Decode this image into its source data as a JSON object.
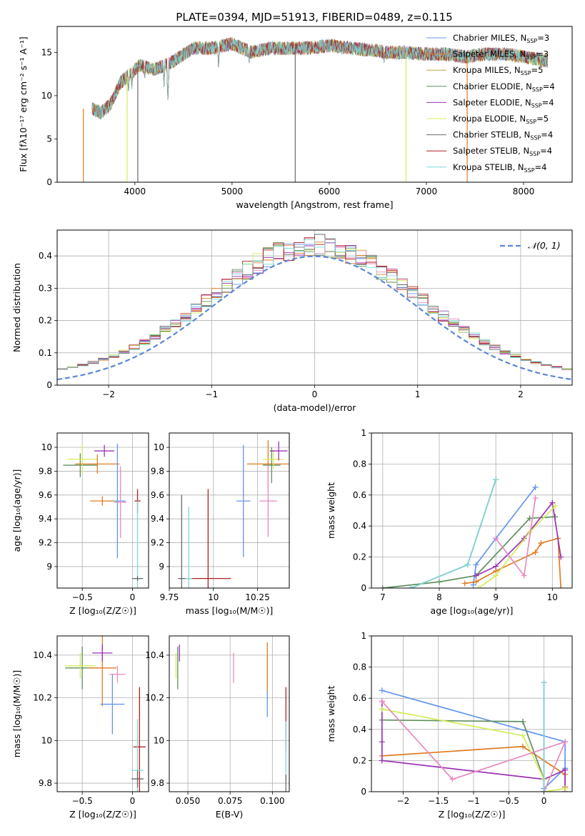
{
  "figure_title": "PLATE=0394, MJD=51913, FIBERID=0489, z=0.115",
  "colors": {
    "cornflower": "#6495ed",
    "dark_orange": "#e07b22",
    "sea_green": "#5f8f5f",
    "dark_orchid": "#9b32b4",
    "yellow_green": "#d4ec5a",
    "hot_pink": "#e88ac0",
    "dim_gray": "#696969",
    "firebrick": "#b22222",
    "light_cyan": "#7fd8d8"
  },
  "chart_data": [
    {
      "id": "spectrum",
      "type": "line",
      "xlabel": "wavelength [Angstrom, rest frame]",
      "ylabel": "Flux [fλ10⁻¹⁷ erg cm⁻² s⁻¹ A⁻¹]",
      "xlim": [
        3200,
        8500
      ],
      "ylim": [
        0,
        18
      ],
      "xticks": [
        4000,
        5000,
        6000,
        7000,
        8000
      ],
      "yticks": [
        0,
        5,
        10,
        15
      ],
      "grid": false,
      "legend_position": "top-right",
      "series": [
        {
          "name": "Chabrier MILES, N_SSP=3",
          "color": "#6495ed"
        },
        {
          "name": "Salpeter MILES, N_SSP=3",
          "color": "#e07b22"
        },
        {
          "name": "Kroupa MILES, N_SSP=5",
          "color": "#c8a050"
        },
        {
          "name": "Chabrier ELODIE, N_SSP=4",
          "color": "#5f8f5f"
        },
        {
          "name": "Salpeter ELODIE, N_SSP=4",
          "color": "#9b32b4"
        },
        {
          "name": "Kroupa ELODIE, N_SSP=5",
          "color": "#d4ec5a"
        },
        {
          "name": "Chabrier STELIB, N_SSP=4",
          "color": "#696969"
        },
        {
          "name": "Salpeter STELIB, N_SSP=4",
          "color": "#b22222"
        },
        {
          "name": "Kroupa STELIB, N_SSP=4",
          "color": "#7fd8d8"
        }
      ],
      "legend_entries": [
        {
          "prefix": "Chabrier MILES, N",
          "sub": "SSP",
          "suffix": "=3"
        },
        {
          "prefix": "Salpeter MILES, N",
          "sub": "SSP",
          "suffix": "=3"
        },
        {
          "prefix": "Kroupa MILES, N",
          "sub": "SSP",
          "suffix": "=5"
        },
        {
          "prefix": "Chabrier ELODIE, N",
          "sub": "SSP",
          "suffix": "=4"
        },
        {
          "prefix": "Salpeter ELODIE, N",
          "sub": "SSP",
          "suffix": "=4"
        },
        {
          "prefix": "Kroupa ELODIE, N",
          "sub": "SSP",
          "suffix": "=5"
        },
        {
          "prefix": "Chabrier STELIB, N",
          "sub": "SSP",
          "suffix": "=4"
        },
        {
          "prefix": "Salpeter STELIB, N",
          "sub": "SSP",
          "suffix": "=4"
        },
        {
          "prefix": "Kroupa STELIB, N",
          "sub": "SSP",
          "suffix": "=4"
        }
      ],
      "continuum": [
        [
          3560,
          8.5
        ],
        [
          3650,
          8.0
        ],
        [
          3750,
          9.0
        ],
        [
          3850,
          11.5
        ],
        [
          3950,
          12.5
        ],
        [
          4050,
          13.5
        ],
        [
          4200,
          13.0
        ],
        [
          4400,
          14.0
        ],
        [
          4600,
          15.5
        ],
        [
          4800,
          15.5
        ],
        [
          5000,
          16.0
        ],
        [
          5200,
          15.0
        ],
        [
          5400,
          15.5
        ],
        [
          5600,
          15.5
        ],
        [
          5800,
          15.5
        ],
        [
          6000,
          15.8
        ],
        [
          6200,
          15.5
        ],
        [
          6400,
          15.3
        ],
        [
          6600,
          15.0
        ],
        [
          6800,
          15.0
        ],
        [
          7000,
          14.8
        ],
        [
          7200,
          14.8
        ],
        [
          7400,
          14.5
        ],
        [
          7600,
          14.8
        ],
        [
          7800,
          14.8
        ],
        [
          8000,
          14.5
        ],
        [
          8250,
          14.0
        ]
      ],
      "absorption_lines": [
        [
          3934,
          10.0
        ],
        [
          3969,
          10.5
        ],
        [
          4102,
          11.5
        ],
        [
          4300,
          11.0
        ],
        [
          4340,
          9.5
        ],
        [
          4861,
          13.0
        ],
        [
          5175,
          13.5
        ],
        [
          5270,
          14.0
        ],
        [
          5890,
          14.5
        ],
        [
          6563,
          13.5
        ]
      ],
      "dropouts": [
        {
          "x": 3470,
          "color": "#e07b22"
        },
        {
          "x": 3920,
          "color": "#d4ec5a"
        },
        {
          "x": 4030,
          "color": "#696969"
        },
        {
          "x": 5650,
          "color": "#696969"
        },
        {
          "x": 6790,
          "color": "#d4ec5a"
        },
        {
          "x": 7420,
          "color": "#e07b22"
        }
      ]
    },
    {
      "id": "residuals",
      "type": "histogram",
      "xlabel": "(data-model)/error",
      "ylabel": "Normed distribution",
      "xlim": [
        -2.5,
        2.5
      ],
      "ylim": [
        0,
        0.48
      ],
      "xticks": [
        -2,
        -1,
        0,
        1,
        2
      ],
      "yticks": [
        0.0,
        0.1,
        0.2,
        0.3,
        0.4
      ],
      "grid": true,
      "legend_position": "top-right",
      "legend_label": "𝒩(0, 1)",
      "reference_curve": "standard normal density",
      "bin_width": 0.1
    },
    {
      "id": "age_vs_Z",
      "type": "scatter",
      "xlabel": "Z [log₁₀(Z/Z☉)]",
      "ylabel": "age  [log₁₀(age/yr)]",
      "xlim": [
        -0.75,
        0.16
      ],
      "ylim": [
        8.82,
        10.12
      ],
      "xticks": [
        -0.5,
        0.0
      ],
      "yticks": [
        9.0,
        9.2,
        9.4,
        9.6,
        9.8,
        10.0
      ],
      "grid": true,
      "points": [
        {
          "x": -0.52,
          "y": 9.85,
          "xerr": 0.17,
          "yerr": 0.1,
          "color": "#5f8f5f"
        },
        {
          "x": -0.5,
          "y": 9.9,
          "xerr": 0.15,
          "yerr": 0.12,
          "color": "#d4ec5a"
        },
        {
          "x": -0.35,
          "y": 9.86,
          "xerr": 0.22,
          "yerr": 0.08,
          "color": "#e07b22"
        },
        {
          "x": -0.28,
          "y": 9.97,
          "xerr": 0.1,
          "yerr": 0.05,
          "color": "#9b32b4"
        },
        {
          "x": -0.15,
          "y": 9.55,
          "xerr": 0.08,
          "yerr": 0.48,
          "color": "#6495ed"
        },
        {
          "x": -0.12,
          "y": 9.54,
          "xerr": 0.06,
          "yerr": 0.3,
          "color": "#e88ac0"
        },
        {
          "x": -0.3,
          "y": 9.55,
          "xerr": 0.12,
          "yerr": 0.04,
          "color": "#e07b22"
        },
        {
          "x": 0.05,
          "y": 9.55,
          "xerr": 0.03,
          "yerr": 0.1,
          "color": "#b22222"
        },
        {
          "x": 0.05,
          "y": 8.9,
          "xerr": 0.06,
          "yerr": 0.65,
          "color": "#7fd8d8"
        },
        {
          "x": 0.05,
          "y": 8.9,
          "xerr": 0.05,
          "yerr": 0.02,
          "color": "#696969"
        }
      ]
    },
    {
      "id": "age_vs_mass",
      "type": "scatter",
      "xlabel": "mass [log₁₀(M/M☉)]",
      "ylabel": "",
      "xlim": [
        9.75,
        10.43
      ],
      "ylim": [
        8.82,
        10.12
      ],
      "xticks": [
        9.75,
        10.0,
        10.25
      ],
      "yticks": [
        9.0,
        9.2,
        9.4,
        9.6,
        9.8,
        10.0
      ],
      "grid": true,
      "points": [
        {
          "x": 10.17,
          "y": 9.55,
          "xerr": 0.04,
          "yerr": 0.47,
          "color": "#6495ed"
        },
        {
          "x": 10.31,
          "y": 9.86,
          "xerr": 0.12,
          "yerr": 0.2,
          "color": "#e07b22"
        },
        {
          "x": 10.33,
          "y": 9.85,
          "xerr": 0.05,
          "yerr": 0.15,
          "color": "#5f8f5f"
        },
        {
          "x": 10.34,
          "y": 9.9,
          "xerr": 0.06,
          "yerr": 0.08,
          "color": "#d4ec5a"
        },
        {
          "x": 10.37,
          "y": 9.97,
          "xerr": 0.05,
          "yerr": 0.08,
          "color": "#9b32b4"
        },
        {
          "x": 10.31,
          "y": 9.55,
          "xerr": 0.05,
          "yerr": 0.3,
          "color": "#e88ac0"
        },
        {
          "x": 9.97,
          "y": 8.9,
          "xerr": 0.13,
          "yerr": 0.75,
          "color": "#b22222"
        },
        {
          "x": 9.86,
          "y": 8.9,
          "xerr": 0.02,
          "yerr": 0.6,
          "color": "#7fd8d8"
        },
        {
          "x": 9.82,
          "y": 8.9,
          "xerr": 0.02,
          "yerr": 0.7,
          "color": "#696969"
        }
      ]
    },
    {
      "id": "weight_vs_age",
      "type": "line",
      "xlabel": "age  [log₁₀(age/yr)]",
      "ylabel": "mass weight",
      "xlim": [
        6.8,
        10.35
      ],
      "ylim": [
        0,
        1.0
      ],
      "xticks": [
        7,
        8,
        9,
        10
      ],
      "yticks": [
        0.0,
        0.2,
        0.4,
        0.6,
        0.8,
        1.0
      ],
      "grid": true,
      "series": [
        {
          "color": "#6495ed",
          "x": [
            8.6,
            8.65,
            9.0,
            9.7
          ],
          "y": [
            0.02,
            0.15,
            0.32,
            0.65
          ]
        },
        {
          "color": "#e07b22",
          "x": [
            8.45,
            8.65,
            9.0,
            9.7,
            9.8,
            10.1,
            10.15
          ],
          "y": [
            0.03,
            0.04,
            0.11,
            0.23,
            0.29,
            0.32,
            0.0
          ]
        },
        {
          "color": "#5f8f5f",
          "x": [
            7.0,
            8.0,
            8.65,
            9.6,
            10.05
          ],
          "y": [
            0.0,
            0.04,
            0.08,
            0.45,
            0.46
          ]
        },
        {
          "color": "#9b32b4",
          "x": [
            8.65,
            9.0,
            9.5,
            10.0,
            10.15
          ],
          "y": [
            0.08,
            0.14,
            0.32,
            0.55,
            0.2
          ]
        },
        {
          "color": "#d4ec5a",
          "x": [
            8.7,
            9.0,
            9.6,
            10.05
          ],
          "y": [
            0.0,
            0.08,
            0.36,
            0.53
          ]
        },
        {
          "color": "#e88ac0",
          "x": [
            9.0,
            9.5,
            9.7
          ],
          "y": [
            0.32,
            0.08,
            0.58
          ]
        },
        {
          "color": "#696969",
          "x": [
            7.5,
            8.5,
            9.0
          ],
          "y": [
            0.0,
            0.15,
            0.7
          ]
        },
        {
          "color": "#7fd8d8",
          "x": [
            7.5,
            8.5,
            9.0
          ],
          "y": [
            0.0,
            0.15,
            0.7
          ]
        }
      ]
    },
    {
      "id": "mass_vs_Z",
      "type": "scatter",
      "xlabel": "Z [log₁₀(Z/Z☉)]",
      "ylabel": "mass [log₁₀(M/M☉)]",
      "xlim": [
        -0.75,
        0.16
      ],
      "ylim": [
        9.76,
        10.49
      ],
      "xticks": [
        -0.5,
        0.0
      ],
      "yticks": [
        9.8,
        10.0,
        10.2,
        10.4
      ],
      "grid": true,
      "points": [
        {
          "x": -0.5,
          "y": 10.34,
          "xerr": 0.17,
          "yerr": 0.1,
          "color": "#5f8f5f"
        },
        {
          "x": -0.52,
          "y": 10.35,
          "xerr": 0.15,
          "yerr": 0.06,
          "color": "#d4ec5a"
        },
        {
          "x": -0.3,
          "y": 10.34,
          "xerr": 0.14,
          "yerr": 0.18,
          "color": "#e07b22"
        },
        {
          "x": -0.3,
          "y": 10.41,
          "xerr": 0.1,
          "yerr": 0.04,
          "color": "#9b32b4"
        },
        {
          "x": -0.15,
          "y": 10.31,
          "xerr": 0.08,
          "yerr": 0.04,
          "color": "#e88ac0"
        },
        {
          "x": -0.2,
          "y": 10.17,
          "xerr": 0.12,
          "yerr": 0.14,
          "color": "#6495ed"
        },
        {
          "x": 0.07,
          "y": 9.97,
          "xerr": 0.06,
          "yerr": 0.28,
          "color": "#b22222"
        },
        {
          "x": 0.05,
          "y": 9.86,
          "xerr": 0.06,
          "yerr": 0.24,
          "color": "#7fd8d8"
        },
        {
          "x": 0.05,
          "y": 9.82,
          "xerr": 0.06,
          "yerr": 0.04,
          "color": "#696969"
        }
      ]
    },
    {
      "id": "mass_vs_ebv",
      "type": "scatter",
      "xlabel": "E(B-V)",
      "ylabel": "",
      "xlim": [
        0.039,
        0.11
      ],
      "ylim": [
        9.76,
        10.49
      ],
      "xticks": [
        0.05,
        0.075,
        0.1
      ],
      "xticklabels": [
        "0.050",
        "0.075",
        "0.100"
      ],
      "yticks": [
        9.8,
        10.0,
        10.2,
        10.4
      ],
      "grid": true,
      "points": [
        {
          "x": 0.044,
          "y": 10.34,
          "yerr": 0.1,
          "color": "#5f8f5f"
        },
        {
          "x": 0.043,
          "y": 10.35,
          "yerr": 0.06,
          "color": "#d4ec5a"
        },
        {
          "x": 0.045,
          "y": 10.41,
          "yerr": 0.04,
          "color": "#9b32b4"
        },
        {
          "x": 0.077,
          "y": 10.34,
          "yerr": 0.07,
          "color": "#e88ac0"
        },
        {
          "x": 0.097,
          "y": 10.34,
          "yerr": 0.12,
          "color": "#e07b22"
        },
        {
          "x": 0.097,
          "y": 10.17,
          "yerr": 0.06,
          "color": "#6495ed"
        },
        {
          "x": 0.108,
          "y": 10.1,
          "yerr": 0.15,
          "color": "#b22222"
        },
        {
          "x": 0.108,
          "y": 9.95,
          "yerr": 0.14,
          "color": "#7fd8d8"
        },
        {
          "x": 0.108,
          "y": 9.8,
          "yerr": 0.04,
          "color": "#696969"
        }
      ]
    },
    {
      "id": "weight_vs_Z",
      "type": "line",
      "xlabel": "Z [log₁₀(Z/Z☉)]",
      "ylabel": "mass weight",
      "xlim": [
        -2.45,
        0.4
      ],
      "ylim": [
        0,
        1.0
      ],
      "xticks": [
        -2.0,
        -1.5,
        -1.0,
        -0.5,
        0.0
      ],
      "yticks": [
        0.0,
        0.2,
        0.4,
        0.6,
        0.8,
        1.0
      ],
      "grid": true,
      "series": [
        {
          "color": "#6495ed",
          "x": [
            -2.3,
            0.3,
            0.3,
            0.0
          ],
          "y": [
            0.65,
            0.32,
            0.15,
            0.02
          ]
        },
        {
          "color": "#e07b22",
          "x": [
            -2.3,
            -0.3,
            0.3,
            0.3,
            0.3
          ],
          "y": [
            0.23,
            0.29,
            0.11,
            0.03,
            0.0
          ]
        },
        {
          "color": "#5f8f5f",
          "x": [
            -2.3,
            -0.3,
            0.0,
            0.0
          ],
          "y": [
            0.46,
            0.45,
            0.08,
            0.0
          ]
        },
        {
          "color": "#9b32b4",
          "x": [
            -2.3,
            -2.3,
            -2.3,
            0.0,
            0.3,
            0.3
          ],
          "y": [
            0.58,
            0.32,
            0.2,
            0.08,
            0.14,
            0.0
          ]
        },
        {
          "color": "#d4ec5a",
          "x": [
            -2.3,
            -0.3,
            0.0,
            0.0,
            0.3
          ],
          "y": [
            0.53,
            0.36,
            0.08,
            0.0,
            0.02
          ]
        },
        {
          "color": "#e88ac0",
          "x": [
            -2.3,
            -1.3,
            0.3,
            0.0
          ],
          "y": [
            0.58,
            0.08,
            0.32,
            0.0
          ]
        },
        {
          "color": "#696969",
          "x": [
            0.0,
            0.0
          ],
          "y": [
            0.7,
            0.0
          ]
        },
        {
          "color": "#7fd8d8",
          "x": [
            0.0,
            0.0
          ],
          "y": [
            0.7,
            0.0
          ]
        }
      ]
    }
  ]
}
